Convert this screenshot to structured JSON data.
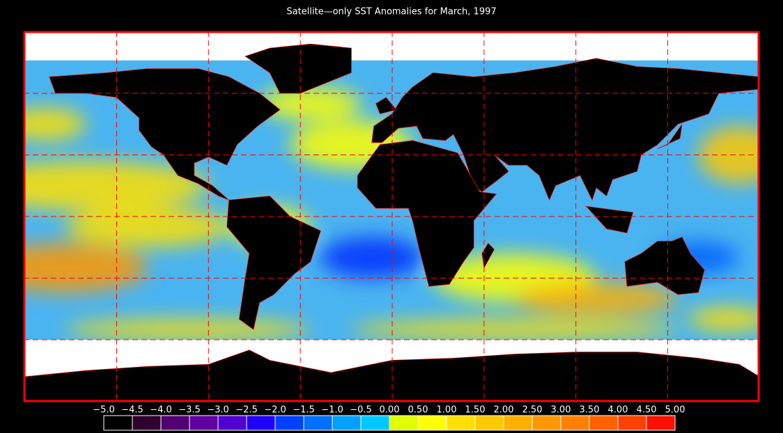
{
  "title": "Satellite—only SST Anomalies for March, 1997",
  "colorbar": {
    "ticks": [
      {
        "value": -5.0,
        "label": "−5.0"
      },
      {
        "value": -4.5,
        "label": "−4.5"
      },
      {
        "value": -4.0,
        "label": "−4.0"
      },
      {
        "value": -3.5,
        "label": "−3.5"
      },
      {
        "value": -3.0,
        "label": "−3.0"
      },
      {
        "value": -2.5,
        "label": "−2.5"
      },
      {
        "value": -2.0,
        "label": "−2.0"
      },
      {
        "value": -1.5,
        "label": "−1.5"
      },
      {
        "value": -1.0,
        "label": "−1.0"
      },
      {
        "value": -0.5,
        "label": "−0.5"
      },
      {
        "value": 0.0,
        "label": "0.00"
      },
      {
        "value": 0.5,
        "label": "0.50"
      },
      {
        "value": 1.0,
        "label": "1.00"
      },
      {
        "value": 1.5,
        "label": "1.50"
      },
      {
        "value": 2.0,
        "label": "2.00"
      },
      {
        "value": 2.5,
        "label": "2.50"
      },
      {
        "value": 3.0,
        "label": "3.00"
      },
      {
        "value": 3.5,
        "label": "3.50"
      },
      {
        "value": 4.0,
        "label": "4.00"
      },
      {
        "value": 4.5,
        "label": "4.50"
      },
      {
        "value": 5.0,
        "label": "5.00"
      }
    ],
    "colors": [
      "#000000",
      "#300030",
      "#500070",
      "#6000a0",
      "#5000d0",
      "#2000ff",
      "#0040ff",
      "#0070ff",
      "#00a0ff",
      "#00c8ff",
      "#e0ff00",
      "#ffff00",
      "#ffe000",
      "#ffc800",
      "#ffb000",
      "#ff9800",
      "#ff8000",
      "#ff6000",
      "#ff4000",
      "#ff1000"
    ]
  }
}
